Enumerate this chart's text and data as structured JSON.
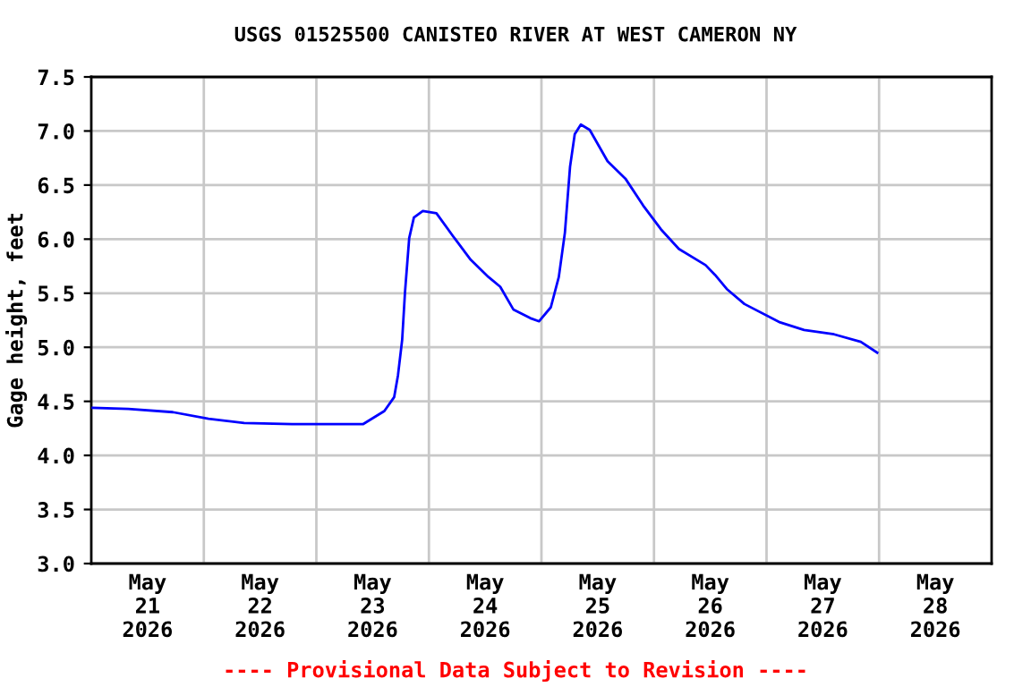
{
  "chart_data": {
    "type": "line",
    "title": "USGS 01525500 CANISTEO RIVER AT WEST CAMERON NY",
    "ylabel": "Gage height, feet",
    "annotations": [
      "---- Provisional Data Subject to Revision ----"
    ],
    "x": [
      "2026-05-21T00:18",
      "2026-05-21T07:54",
      "2026-05-21T17:24",
      "2026-05-22T01:00",
      "2026-05-22T08:36",
      "2026-05-22T18:48",
      "2026-05-23T10:00",
      "2026-05-23T14:30",
      "2026-05-23T16:36",
      "2026-05-23T17:24",
      "2026-05-23T18:18",
      "2026-05-23T18:54",
      "2026-05-23T19:48",
      "2026-05-23T20:48",
      "2026-05-23T22:42",
      "2026-05-24T01:36",
      "2026-05-24T05:06",
      "2026-05-24T08:54",
      "2026-05-24T12:42",
      "2026-05-24T15:12",
      "2026-05-24T18:00",
      "2026-05-24T21:36",
      "2026-05-24T23:30",
      "2026-05-25T02:00",
      "2026-05-25T03:42",
      "2026-05-25T05:00",
      "2026-05-25T06:06",
      "2026-05-25T07:06",
      "2026-05-25T08:24",
      "2026-05-25T10:18",
      "2026-05-25T14:06",
      "2026-05-25T17:54",
      "2026-05-25T21:42",
      "2026-05-26T01:30",
      "2026-05-26T05:18",
      "2026-05-26T11:00",
      "2026-05-26T13:00",
      "2026-05-26T15:30",
      "2026-05-26T19:18",
      "2026-05-27T02:54",
      "2026-05-27T08:00",
      "2026-05-27T14:24",
      "2026-05-27T20:06",
      "2026-05-27T23:36"
    ],
    "series": [
      {
        "color": "#0000ff",
        "values": [
          4.44,
          4.43,
          4.4,
          4.34,
          4.3,
          4.29,
          4.29,
          4.41,
          4.54,
          4.74,
          5.07,
          5.51,
          6.01,
          6.2,
          6.26,
          6.24,
          6.03,
          5.81,
          5.65,
          5.56,
          5.35,
          5.27,
          5.24,
          5.37,
          5.65,
          6.06,
          6.67,
          6.97,
          7.06,
          7.01,
          6.72,
          6.56,
          6.31,
          6.09,
          5.91,
          5.76,
          5.67,
          5.54,
          5.4,
          5.23,
          5.16,
          5.12,
          5.05,
          4.95
        ]
      }
    ],
    "xlim": [
      "2026-05-21T00:00",
      "2026-05-29T00:00"
    ],
    "xticks": [
      {
        "value": "2026-05-21T12:00",
        "label": "May\n21\n2026"
      },
      {
        "value": "2026-05-22T00:00",
        "label": null
      },
      {
        "value": "2026-05-22T12:00",
        "label": "May\n22\n2026"
      },
      {
        "value": "2026-05-23T00:00",
        "label": null
      },
      {
        "value": "2026-05-23T12:00",
        "label": "May\n23\n2026"
      },
      {
        "value": "2026-05-24T00:00",
        "label": null
      },
      {
        "value": "2026-05-24T12:00",
        "label": "May\n24\n2026"
      },
      {
        "value": "2026-05-25T00:00",
        "label": null
      },
      {
        "value": "2026-05-25T12:00",
        "label": "May\n25\n2026"
      },
      {
        "value": "2026-05-26T00:00",
        "label": null
      },
      {
        "value": "2026-05-26T12:00",
        "label": "May\n26\n2026"
      },
      {
        "value": "2026-05-27T00:00",
        "label": null
      },
      {
        "value": "2026-05-27T12:00",
        "label": "May\n27\n2026"
      },
      {
        "value": "2026-05-28T00:00",
        "label": null
      },
      {
        "value": "2026-05-28T12:00",
        "label": "May\n28\n2026"
      }
    ],
    "ylim": [
      3.0,
      7.5
    ],
    "yticks": [
      {
        "value": 3,
        "label": "3.0"
      },
      {
        "value": 3.5,
        "label": "3.5"
      },
      {
        "value": 4,
        "label": "4.0"
      },
      {
        "value": 4.5,
        "label": "4.5"
      },
      {
        "value": 5,
        "label": "5.0"
      },
      {
        "value": 5.5,
        "label": "5.5"
      },
      {
        "value": 6,
        "label": "6.0"
      },
      {
        "value": 6.5,
        "label": "6.5"
      },
      {
        "value": 7,
        "label": "7.0"
      },
      {
        "value": 7.5,
        "label": "7.5"
      }
    ],
    "grid": true
  }
}
